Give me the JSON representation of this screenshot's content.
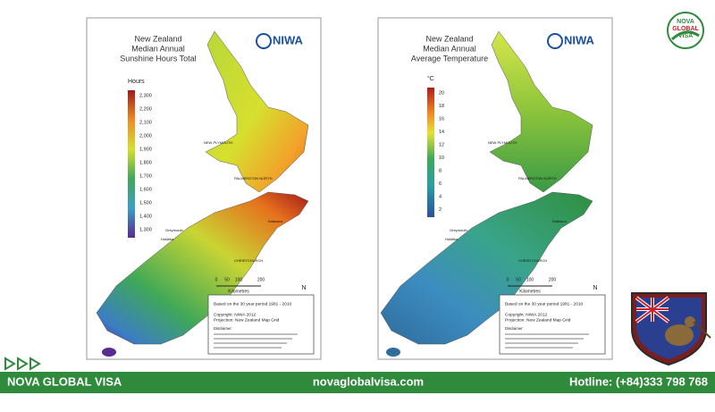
{
  "maps": [
    {
      "title_lines": [
        "New Zealand",
        "Median Annual",
        "Sunshine Hours Total"
      ],
      "logo": "NIWA",
      "legend_title": "Hours",
      "legend_labels": [
        "2,300",
        "2,200",
        "2,100",
        "2,000",
        "1,900",
        "1,800",
        "1,700",
        "1,600",
        "1,500",
        "1,400",
        "1,300"
      ],
      "scale_labels": [
        "0",
        "50",
        "100",
        "200"
      ],
      "scale_unit": "Kilometres",
      "north": "N",
      "period": "Based on the 30 year period 1981 - 2010",
      "copyright": "Copyright: NIWA 2012",
      "projection": "Projection: New Zealand Map Grid",
      "disclaimer": "Disclaimer:",
      "places": [
        "NEW PLYMOUTH",
        "PALMERSTON NORTH",
        "CHRISTCHURCH",
        "Greymouth",
        "Hokitika",
        "Kaikoura"
      ]
    },
    {
      "title_lines": [
        "New Zealand",
        "Median Annual",
        "Average Temperature"
      ],
      "logo": "NIWA",
      "legend_title": "°C",
      "legend_labels": [
        "20",
        "18",
        "16",
        "14",
        "12",
        "10",
        "8",
        "6",
        "4",
        "2"
      ],
      "scale_labels": [
        "0",
        "50",
        "100",
        "200"
      ],
      "scale_unit": "Kilometres",
      "north": "N",
      "period": "Based on the 30 year period 1981 - 2010",
      "copyright": "Copyright: NIWA 2012",
      "projection": "Projection: New Zealand Map Grid",
      "disclaimer": "Disclaimer:",
      "places": [
        "NEW PLYMOUTH",
        "PALMERSTON NORTH",
        "CHRISTCHURCH",
        "Greymouth",
        "Hokitika",
        "Kaikoura"
      ]
    }
  ],
  "brand": {
    "logo_lines": [
      "NOVA",
      "GLOBAL",
      "VISA"
    ]
  },
  "footer": {
    "name": "NOVA GLOBAL VISA",
    "website": "novaglobalvisa.com",
    "hotline": "Hotline: (+84)333 798 768"
  }
}
